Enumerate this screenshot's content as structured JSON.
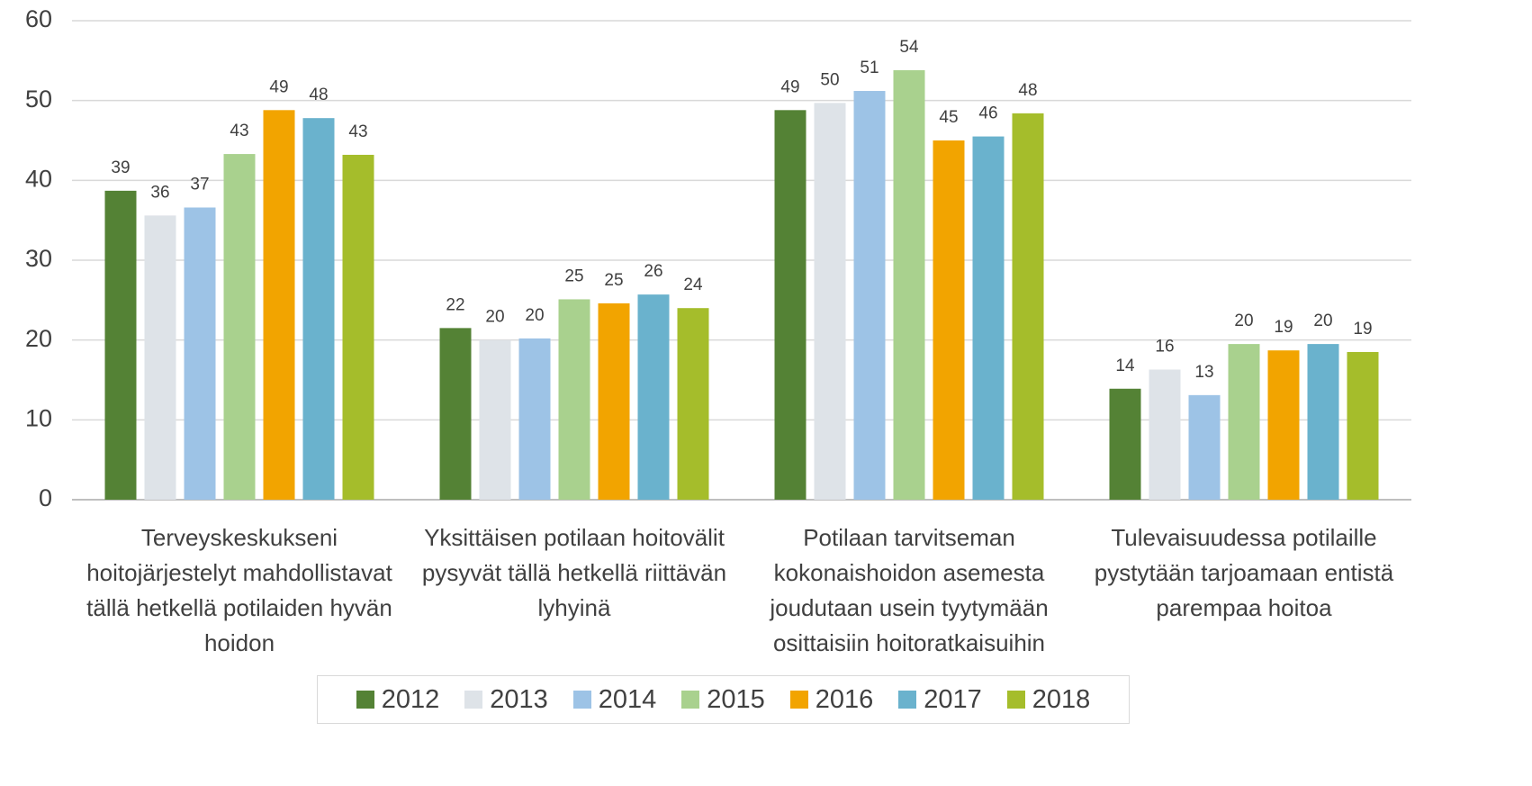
{
  "chart_data": {
    "type": "bar",
    "categories": [
      "Terveyskeskukseni hoitojärjestelyt mahdollistavat tällä hetkellä potilaiden hyvän hoidon",
      "Yksittäisen potilaan hoitovälit pysyvät tällä hetkellä riittävän lyhyinä",
      "Potilaan tarvitseman kokonaishoidon asemesta joudutaan usein tyytymään osittaisiin hoitoratkaisuihin",
      "Tulevaisuudessa potilaille pystytään tarjoamaan entistä parempaa hoitoa"
    ],
    "series": [
      {
        "name": "2012",
        "color": "#548235",
        "values": [
          38.7,
          21.5,
          48.8,
          13.9
        ],
        "value_labels": [
          "39",
          "22",
          "49",
          "14"
        ]
      },
      {
        "name": "2013",
        "color": "#dee3e8",
        "values": [
          35.6,
          20.0,
          49.7,
          16.3
        ],
        "value_labels": [
          "36",
          "20",
          "50",
          "16"
        ]
      },
      {
        "name": "2014",
        "color": "#9dc3e6",
        "values": [
          36.6,
          20.2,
          51.2,
          13.1
        ],
        "value_labels": [
          "37",
          "20",
          "51",
          "13"
        ]
      },
      {
        "name": "2015",
        "color": "#a9d18e",
        "values": [
          43.3,
          25.1,
          53.8,
          19.5
        ],
        "value_labels": [
          "43",
          "25",
          "54",
          "20"
        ]
      },
      {
        "name": "2016",
        "color": "#f2a400",
        "values": [
          48.8,
          24.6,
          45.0,
          18.7
        ],
        "value_labels": [
          "49",
          "25",
          "45",
          "19"
        ]
      },
      {
        "name": "2017",
        "color": "#6ab2cd",
        "values": [
          47.8,
          25.7,
          45.5,
          19.5
        ],
        "value_labels": [
          "48",
          "26",
          "46",
          "20"
        ]
      },
      {
        "name": "2018",
        "color": "#a5bd2b",
        "values": [
          43.2,
          24.0,
          48.4,
          18.5
        ],
        "value_labels": [
          "43",
          "24",
          "48",
          "19"
        ]
      }
    ],
    "ylim": [
      0,
      60
    ],
    "yticks": [
      0,
      10,
      20,
      30,
      40,
      50,
      60
    ],
    "grid": true,
    "legend": "bottom"
  }
}
